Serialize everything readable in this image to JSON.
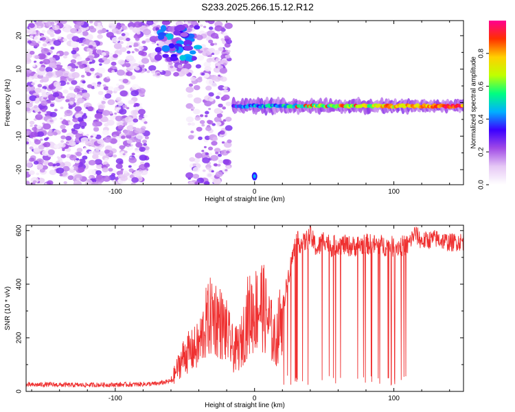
{
  "title": "S233.2025.266.15.12.R12",
  "chart_data": [
    {
      "type": "heatmap",
      "xlabel": "Height of straight line (km)",
      "ylabel": "Frequency (Hz)",
      "xlim": [
        -164,
        150
      ],
      "ylim": [
        -24.5,
        24.5
      ],
      "xticks": [
        "-100",
        "0",
        "100"
      ],
      "xtick_values": [
        -100,
        0,
        100
      ],
      "yticks": [
        "20",
        "10",
        "0",
        "-10",
        "-20"
      ],
      "ytick_values": [
        20,
        10,
        0,
        -10,
        -20
      ],
      "colorbar": {
        "label": "Normalized spectral amplitude",
        "ticks": [
          "0.0",
          "0.2",
          "0.4",
          "0.6",
          "0.8"
        ],
        "tick_values": [
          0,
          0.2,
          0.4,
          0.6,
          0.8
        ],
        "range": [
          0,
          1
        ],
        "colors": [
          "#ffffff",
          "#e6c8f5",
          "#a14be6",
          "#3b00ff",
          "#00b0ff",
          "#00ff80",
          "#c0ff00",
          "#ffd000",
          "#ff3000",
          "#ff0090"
        ]
      },
      "features": {
        "noise_region": [
          -164,
          -18
        ],
        "signal_line_x": [
          -15,
          150
        ],
        "signal_line_freq": -1,
        "dc_spike_x": 0,
        "dc_spike_freq": -22
      }
    },
    {
      "type": "line",
      "xlabel": "Height of straight line (km)",
      "ylabel": "SNR (10 * v/v)",
      "xlim": [
        -164,
        150
      ],
      "ylim": [
        0,
        620
      ],
      "xticks": [
        "-100",
        "0",
        "100"
      ],
      "xtick_values": [
        -100,
        0,
        100
      ],
      "yticks": [
        "0",
        "200",
        "400",
        "600"
      ],
      "ytick_values": [
        0,
        200,
        400,
        600
      ],
      "color": "#ef3030",
      "x": [
        -164,
        -150,
        -130,
        -110,
        -90,
        -70,
        -60,
        -55,
        -50,
        -45,
        -40,
        -35,
        -30,
        -25,
        -20,
        -15,
        -10,
        -5,
        0,
        5,
        10,
        15,
        20,
        25,
        30,
        35,
        40,
        45,
        50,
        55,
        60,
        70,
        80,
        90,
        100,
        110,
        115,
        120,
        130,
        140,
        150
      ],
      "y": [
        20,
        22,
        20,
        21,
        22,
        25,
        35,
        90,
        140,
        150,
        170,
        250,
        290,
        260,
        220,
        150,
        170,
        280,
        300,
        330,
        260,
        180,
        300,
        450,
        560,
        550,
        580,
        530,
        570,
        540,
        550,
        540,
        550,
        545,
        540,
        545,
        590,
        560,
        570,
        555,
        560
      ]
    }
  ]
}
